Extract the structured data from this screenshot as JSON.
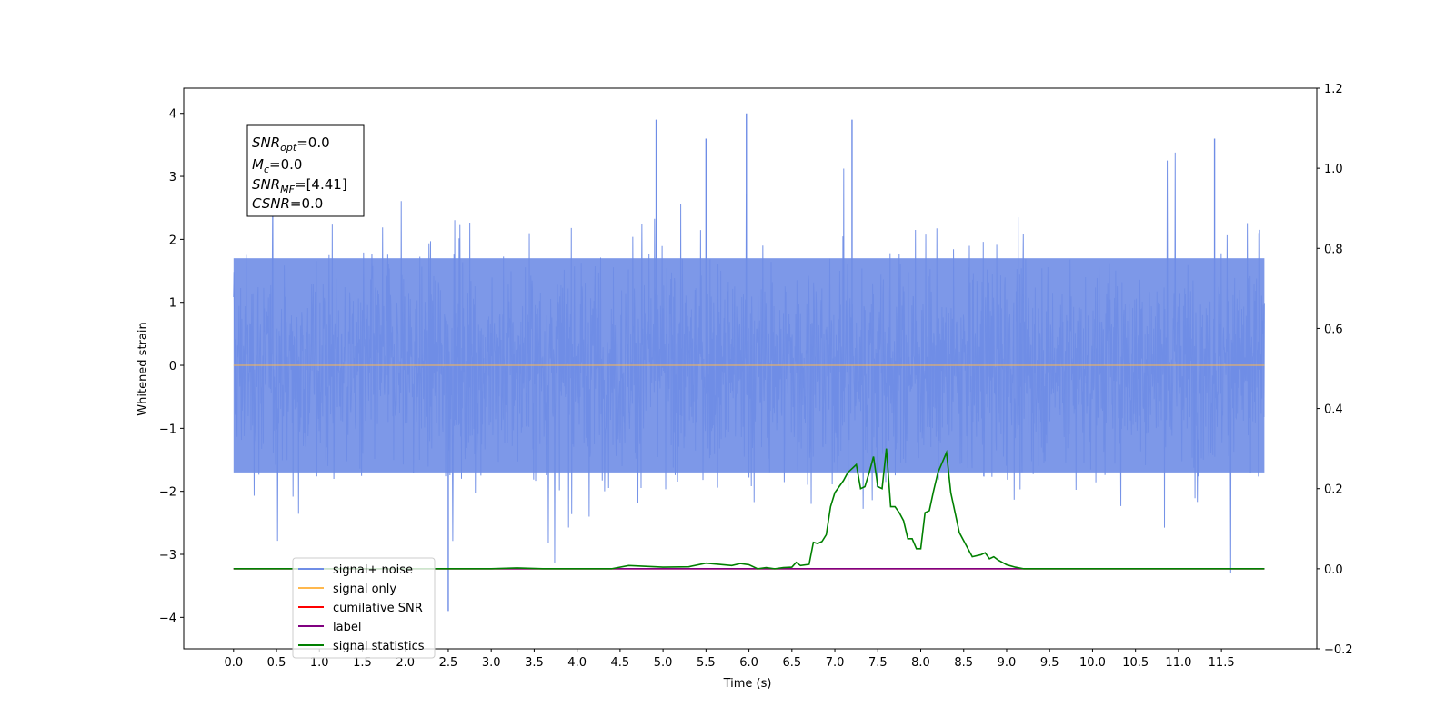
{
  "chart_data": {
    "type": "line",
    "xlabel": "Time (s)",
    "ylabel": "Whitened strain",
    "xlim": [
      -0.58,
      12.61
    ],
    "ylim": [
      -4.5,
      4.4
    ],
    "y2lim": [
      -0.2,
      1.2
    ],
    "x_ticks": [
      "0.0",
      "0.5",
      "1.0",
      "1.5",
      "2.0",
      "2.5",
      "3.0",
      "3.5",
      "4.0",
      "4.5",
      "5.0",
      "5.5",
      "6.0",
      "6.5",
      "7.0",
      "7.5",
      "8.0",
      "8.5",
      "9.0",
      "9.5",
      "10.0",
      "10.5",
      "11.0",
      "11.5"
    ],
    "y_ticks": [
      "4",
      "3",
      "2",
      "1",
      "0",
      "−1",
      "−2",
      "−3",
      "−4"
    ],
    "y2_ticks": [
      "1.2",
      "1.0",
      "0.8",
      "0.6",
      "0.4",
      "0.2",
      "0.0",
      "−0.2"
    ],
    "grid": false,
    "legend_position": "lower-left",
    "annotation": {
      "lines": [
        {
          "sym": "SNR",
          "sub": "opt",
          "value": "=0.0"
        },
        {
          "sym": "M",
          "sub": "c",
          "value": "=0.0"
        },
        {
          "sym": "SNR",
          "sub": "MF",
          "value": "=[4.41]"
        },
        {
          "sym": "CSNR",
          "sub": "",
          "value": "=0.0"
        }
      ]
    },
    "series": [
      {
        "name": "signal+ noise",
        "axis": "left",
        "color": "#6f8de6",
        "kind": "noise band",
        "x_range": [
          0.0,
          12.0
        ],
        "band": [
          -1.7,
          1.7
        ],
        "notable_spikes": [
          [
            5.97,
            4.0
          ],
          [
            2.5,
            -3.9
          ],
          [
            4.92,
            3.9
          ],
          [
            7.2,
            3.9
          ],
          [
            11.42,
            3.6
          ],
          [
            5.5,
            3.6
          ]
        ]
      },
      {
        "name": "signal only",
        "axis": "left",
        "color": "#ffb84d",
        "x": [
          0.0,
          12.0
        ],
        "y": [
          0.0,
          0.0
        ]
      },
      {
        "name": "cumilative SNR",
        "axis": "right",
        "color": "#ff0000",
        "x": [
          0.0,
          12.0
        ],
        "y": [
          0.0,
          0.0
        ]
      },
      {
        "name": "label",
        "axis": "right",
        "color": "#800080",
        "x": [
          0.0,
          12.0
        ],
        "y": [
          0.0,
          0.0
        ]
      },
      {
        "name": "signal statistics",
        "axis": "right",
        "color": "#008000",
        "x": [
          0.0,
          3.0,
          3.3,
          3.6,
          4.0,
          4.4,
          4.6,
          5.0,
          5.3,
          5.5,
          5.6,
          5.8,
          5.9,
          6.0,
          6.1,
          6.2,
          6.3,
          6.4,
          6.5,
          6.55,
          6.6,
          6.7,
          6.75,
          6.8,
          6.85,
          6.9,
          6.95,
          7.0,
          7.1,
          7.15,
          7.2,
          7.25,
          7.3,
          7.35,
          7.4,
          7.45,
          7.5,
          7.55,
          7.6,
          7.65,
          7.7,
          7.75,
          7.8,
          7.85,
          7.9,
          7.95,
          8.0,
          8.05,
          8.1,
          8.15,
          8.2,
          8.3,
          8.35,
          8.4,
          8.45,
          8.5,
          8.55,
          8.6,
          8.7,
          8.75,
          8.8,
          8.85,
          8.9,
          9.0,
          9.1,
          9.2,
          9.3,
          9.4,
          9.5,
          12.0
        ],
        "y": [
          0.0,
          0.0,
          0.002,
          0.0,
          0.0,
          0.0,
          0.008,
          0.004,
          0.005,
          0.014,
          0.012,
          0.008,
          0.013,
          0.01,
          0.0,
          0.003,
          0.0,
          0.003,
          0.004,
          0.016,
          0.008,
          0.011,
          0.066,
          0.063,
          0.068,
          0.085,
          0.155,
          0.19,
          0.22,
          0.24,
          0.25,
          0.26,
          0.2,
          0.205,
          0.24,
          0.28,
          0.205,
          0.2,
          0.3,
          0.155,
          0.155,
          0.14,
          0.12,
          0.075,
          0.075,
          0.05,
          0.05,
          0.14,
          0.145,
          0.195,
          0.24,
          0.29,
          0.19,
          0.14,
          0.09,
          0.07,
          0.05,
          0.03,
          0.035,
          0.04,
          0.025,
          0.03,
          0.022,
          0.01,
          0.004,
          0.0,
          0.0,
          0.0,
          0.0,
          0.0
        ]
      }
    ]
  }
}
